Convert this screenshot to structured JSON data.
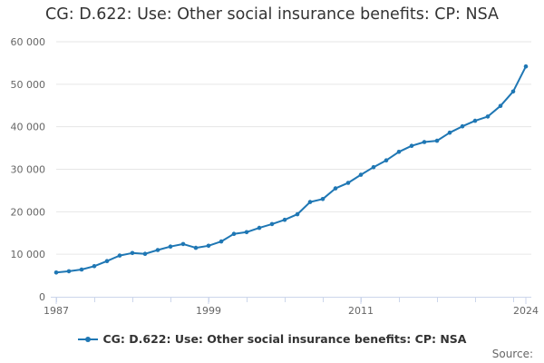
{
  "colors": {
    "series": "#1f77b4",
    "grid": "#e6e6e6",
    "axis": "#ccd6eb",
    "text": "#333333",
    "tick_text": "#666666"
  },
  "chart_data": {
    "type": "line",
    "title": "CG: D.622: Use: Other social insurance benefits: CP: NSA",
    "xlabel": "",
    "ylabel": "",
    "x_ticks": [
      "1987",
      "1999",
      "2011",
      "2024"
    ],
    "y_ticks": [
      "0",
      "10 000",
      "20 000",
      "30 000",
      "40 000",
      "50 000",
      "60 000"
    ],
    "ylim": [
      0,
      60000
    ],
    "xlim": [
      1987,
      2024
    ],
    "grid": true,
    "legend": "bottom",
    "x": [
      1987,
      1988,
      1989,
      1990,
      1991,
      1992,
      1993,
      1994,
      1995,
      1996,
      1997,
      1998,
      1999,
      2000,
      2001,
      2002,
      2003,
      2004,
      2005,
      2006,
      2007,
      2008,
      2009,
      2010,
      2011,
      2012,
      2013,
      2014,
      2015,
      2016,
      2017,
      2018,
      2019,
      2020,
      2021,
      2022,
      2023,
      2024
    ],
    "series": [
      {
        "name": "CG: D.622: Use: Other social insurance benefits: CP: NSA",
        "values": [
          5700,
          6000,
          6400,
          7200,
          8400,
          9700,
          10300,
          10100,
          11000,
          11800,
          12400,
          11500,
          12000,
          13000,
          14800,
          15200,
          16200,
          17100,
          18100,
          19400,
          22300,
          23000,
          25500,
          26800,
          28700,
          30500,
          32100,
          34100,
          35500,
          36400,
          36700,
          38600,
          40100,
          41400,
          42400,
          44900,
          48300,
          54200
        ]
      }
    ]
  },
  "source_label": "Source:"
}
